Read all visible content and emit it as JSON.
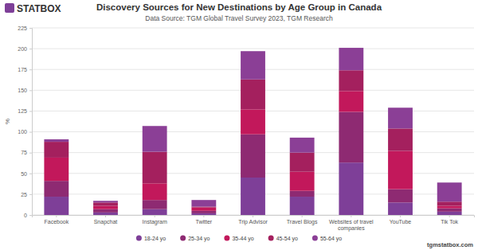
{
  "chart_data": {
    "type": "bar",
    "stacked": true,
    "title": "Discovery Sources for New Destinations by Age Group in Canada",
    "subtitle": "Data Source: TGM Global Travel Survey 2023, TGM Research",
    "logo_text": "STATBOX",
    "footer": "tgmstatbox.com",
    "y_label": "%",
    "categories": [
      "Facebook",
      "Snapchat",
      "Instagram",
      "Twitter",
      "Trip Advisor",
      "Travel Blogs",
      "Websites of travel companies",
      "YouTube",
      "Tik Tok"
    ],
    "series": [
      {
        "name": "18-24 yo",
        "color": "#7e3f98",
        "values": [
          22,
          3,
          7,
          2,
          45,
          22,
          63,
          15,
          4
        ]
      },
      {
        "name": "25-34 yo",
        "color": "#8e2a72",
        "values": [
          19,
          4,
          11,
          3,
          52,
          7,
          61,
          16,
          4
        ]
      },
      {
        "name": "35-44 yo",
        "color": "#c2185b",
        "values": [
          28,
          4,
          20,
          4,
          30,
          23,
          25,
          46,
          3
        ]
      },
      {
        "name": "45-54 yo",
        "color": "#a4205e",
        "values": [
          19,
          4,
          38,
          1,
          36,
          23,
          25,
          27,
          5
        ]
      },
      {
        "name": "55-64 yo",
        "color": "#8b3f96",
        "values": [
          3,
          2,
          31,
          8,
          34,
          18,
          27,
          25,
          23
        ]
      }
    ],
    "ylim": [
      0,
      225
    ],
    "yticks": [
      0,
      25,
      50,
      75,
      100,
      125,
      150,
      175,
      200,
      225
    ],
    "grid": true,
    "legend": "bottom"
  }
}
